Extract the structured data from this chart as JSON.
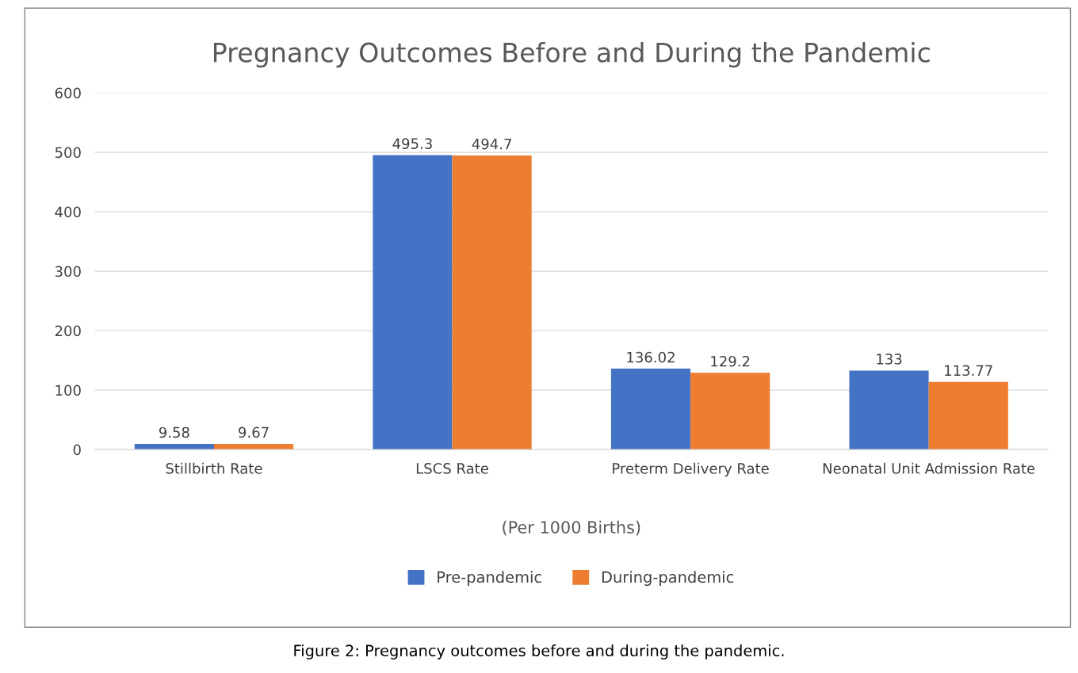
{
  "chart_data": {
    "type": "bar",
    "title": "Pregnancy Outcomes Before and During the Pandemic",
    "xlabel": "(Per 1000 Births)",
    "categories": [
      "Stillbirth Rate",
      "LSCS Rate",
      "Preterm Delivery Rate",
      "Neonatal Unit Admission Rate"
    ],
    "series": [
      {
        "name": "Pre-pandemic",
        "color": "#4472c4",
        "values": [
          9.58,
          495.3,
          136.02,
          133
        ]
      },
      {
        "name": "During-pandemic",
        "color": "#ed7d31",
        "values": [
          9.67,
          494.7,
          129.2,
          113.77
        ]
      }
    ],
    "ylim": [
      0,
      600
    ],
    "yticks": [
      0,
      100,
      200,
      300,
      400,
      500,
      600
    ],
    "grid": "y",
    "legend": "bottom",
    "data_labels": true,
    "annotations": [
      "Figure 2: Pregnancy outcomes before and during the pandemic."
    ]
  }
}
